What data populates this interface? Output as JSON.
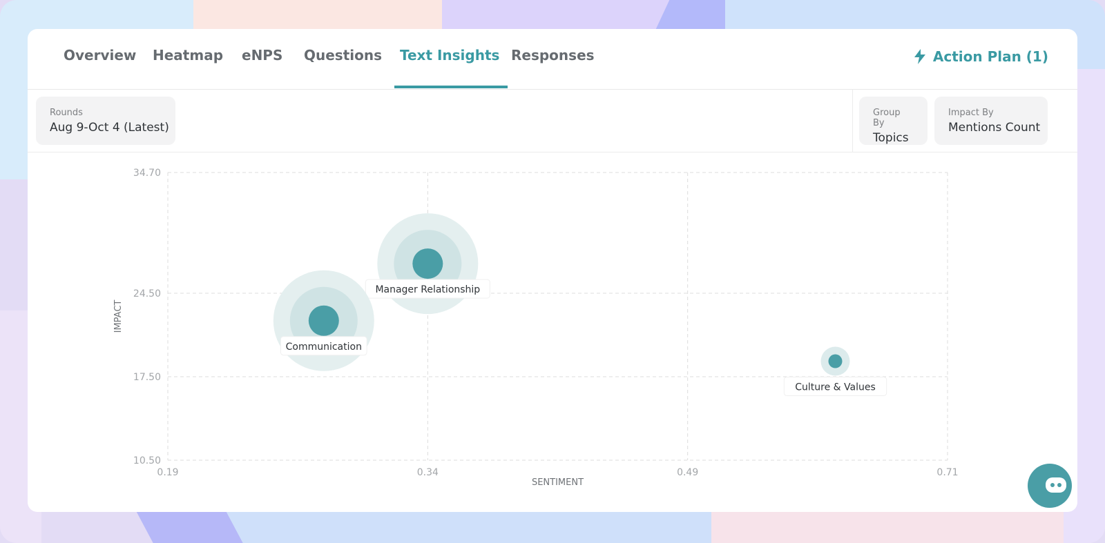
{
  "tabs": [
    "Overview",
    "Heatmap",
    "eNPS",
    "Questions",
    "Text Insights",
    "Responses"
  ],
  "active_tab": "Text Insights",
  "action_plan": {
    "label": "Action Plan (1)",
    "icon": "lightning-bolt-icon"
  },
  "filters": {
    "rounds": {
      "label": "Rounds",
      "value": "Aug 9-Oct 4 (Latest)"
    },
    "group_by": {
      "label": "Group By",
      "value": "Topics"
    },
    "impact_by": {
      "label": "Impact By",
      "value": "Mentions Count"
    }
  },
  "colors": {
    "accent": "#3a9aa3",
    "bubble_core": "#4a9ea6",
    "bubble_ring": "#d6e7e9"
  },
  "chart_data": {
    "type": "scatter",
    "xlabel": "SENTIMENT",
    "ylabel": "IMPACT",
    "x_ticks": [
      "0.19",
      "0.34",
      "0.49",
      "0.71"
    ],
    "y_ticks": [
      "34.70",
      "24.50",
      "17.50",
      "10.50"
    ],
    "xlim": [
      0.19,
      0.71
    ],
    "ylim": [
      10.5,
      34.7
    ],
    "grid": true,
    "points": [
      {
        "label": "Manager Relationship",
        "x": 0.34,
        "y": 27.0,
        "size": "large"
      },
      {
        "label": "Communication",
        "x": 0.28,
        "y": 22.2,
        "size": "large"
      },
      {
        "label": "Culture & Values",
        "x": 0.615,
        "y": 18.8,
        "size": "small"
      }
    ]
  }
}
